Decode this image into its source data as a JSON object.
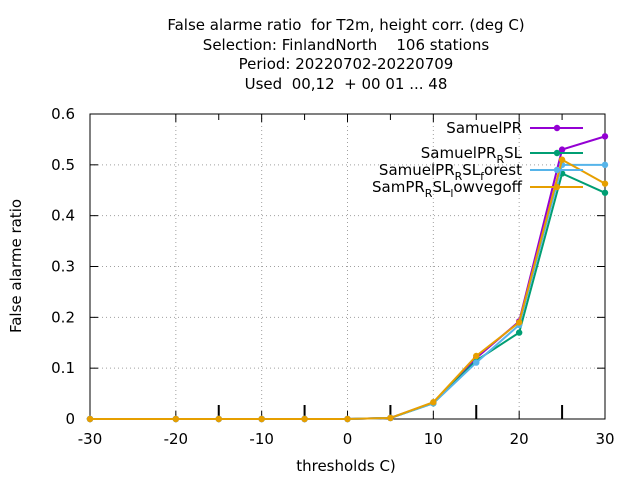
{
  "chart_data": {
    "type": "line",
    "title_lines": [
      "False alarme ratio  for T2m, height corr. (deg C)",
      "Selection: FinlandNorth    106 stations",
      "Period: 20220702-20220709",
      "Used  00,12  + 00 01 ... 48"
    ],
    "xlabel": "thresholds C)",
    "ylabel": "False alarme ratio",
    "xlim": [
      -30,
      30
    ],
    "ylim": [
      0,
      0.6
    ],
    "x_ticks": [
      "-30",
      "-20",
      "-10",
      "0",
      "10",
      "20",
      "30"
    ],
    "y_ticks": [
      "0",
      "0.1",
      "0.2",
      "0.3",
      "0.4",
      "0.5",
      "0.6"
    ],
    "x_tick_values": [
      -30,
      -20,
      -10,
      0,
      10,
      20,
      30
    ],
    "y_tick_values": [
      0,
      0.1,
      0.2,
      0.3,
      0.4,
      0.5,
      0.6
    ],
    "minor_x_ticks": [
      -15,
      -5,
      5,
      15,
      25
    ],
    "grid": true,
    "legend_position": "top-right",
    "x": [
      -30,
      -20,
      -15,
      -10,
      -5,
      0,
      5,
      10,
      15,
      20,
      25,
      30
    ],
    "series": [
      {
        "name": "SamuelPR",
        "legend_main": "SamuelPR",
        "legend_sub": "",
        "legend_tail": "",
        "color": "#9400d3",
        "marker": "filled-circle",
        "values": [
          0,
          0,
          0,
          0,
          0,
          0,
          0.002,
          0.032,
          0.12,
          0.192,
          0.53,
          0.556
        ]
      },
      {
        "name": "SamuelPR_RSL",
        "legend_main": "SamuelPR",
        "legend_sub": "R",
        "legend_tail": "SL",
        "color": "#009e73",
        "marker": "filled-circle",
        "values": [
          0,
          0,
          0,
          0,
          0,
          0,
          0.002,
          0.031,
          0.115,
          0.17,
          0.483,
          0.445
        ]
      },
      {
        "name": "SamuelPR_RSL_forest",
        "legend_main": "SamuelPR",
        "legend_sub": "R",
        "legend_tail": "SL",
        "legend_sub2": "f",
        "legend_tail2": "orest",
        "color": "#56b4e9",
        "marker": "filled-circle",
        "values": [
          0,
          0,
          0,
          0,
          0,
          0,
          0.002,
          0.031,
          0.111,
          0.185,
          0.5,
          0.5
        ]
      },
      {
        "name": "SamPR_RSL_lowvegoff",
        "legend_main": "SamPR",
        "legend_sub": "R",
        "legend_tail": "SL",
        "legend_sub2": "l",
        "legend_tail2": "owvegoff",
        "color": "#e69f00",
        "marker": "filled-circle",
        "values": [
          0,
          0,
          0,
          0,
          0,
          0,
          0.002,
          0.033,
          0.124,
          0.19,
          0.51,
          0.463
        ]
      }
    ]
  }
}
